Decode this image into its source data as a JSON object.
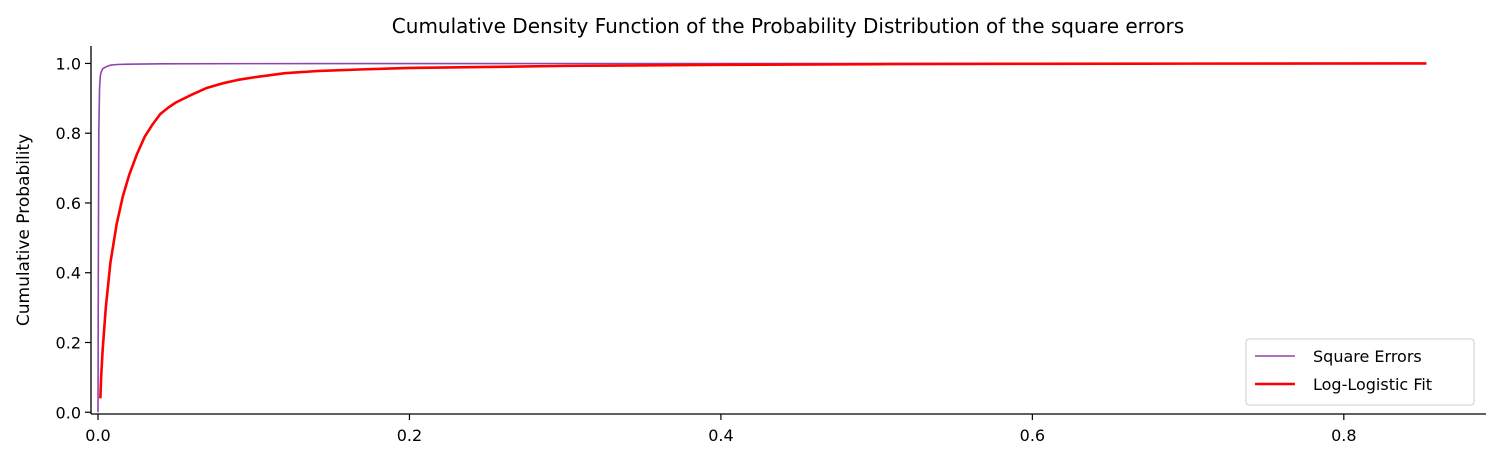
{
  "chart_data": {
    "type": "line",
    "title": "Cumulative Density Function of the Probability Distribution of the square errors",
    "xlabel": "",
    "ylabel": "Cumulative Probability",
    "xlim": [
      -0.0045,
      0.8913
    ],
    "ylim": [
      -0.005,
      1.05
    ],
    "xticks": [
      0.0,
      0.2,
      0.4,
      0.6,
      0.8
    ],
    "xtick_labels": [
      "0.0",
      "0.2",
      "0.4",
      "0.6",
      "0.8"
    ],
    "yticks": [
      0.0,
      0.2,
      0.4,
      0.6,
      0.8,
      1.0
    ],
    "ytick_labels": [
      "0.0",
      "0.2",
      "0.4",
      "0.6",
      "0.8",
      "1.0"
    ],
    "grid": false,
    "legend_position": "bottom-right",
    "series": [
      {
        "name": "Square Errors",
        "color": "#8e44ad",
        "x": [
          0.0,
          0.0002,
          0.0005,
          0.001,
          0.0015,
          0.002,
          0.003,
          0.005,
          0.008,
          0.012,
          0.02,
          0.04,
          0.1,
          0.3,
          0.6,
          0.853
        ],
        "y": [
          0.0,
          0.4,
          0.8,
          0.93,
          0.965,
          0.975,
          0.985,
          0.99,
          0.995,
          0.997,
          0.998,
          0.999,
          0.9995,
          0.9998,
          0.9999,
          1.0
        ]
      },
      {
        "name": "Log-Logistic Fit",
        "color": "#ff0000",
        "x": [
          0.0015,
          0.002,
          0.003,
          0.005,
          0.008,
          0.012,
          0.016,
          0.02,
          0.025,
          0.03,
          0.035,
          0.04,
          0.045,
          0.05,
          0.06,
          0.07,
          0.08,
          0.09,
          0.1,
          0.12,
          0.14,
          0.17,
          0.2,
          0.25,
          0.3,
          0.4,
          0.5,
          0.6,
          0.7,
          0.853
        ],
        "y": [
          0.04,
          0.1,
          0.18,
          0.3,
          0.43,
          0.54,
          0.62,
          0.68,
          0.74,
          0.79,
          0.825,
          0.855,
          0.873,
          0.888,
          0.91,
          0.93,
          0.943,
          0.953,
          0.96,
          0.972,
          0.978,
          0.983,
          0.987,
          0.99,
          0.993,
          0.996,
          0.998,
          0.999,
          0.9995,
          1.0
        ]
      }
    ]
  }
}
